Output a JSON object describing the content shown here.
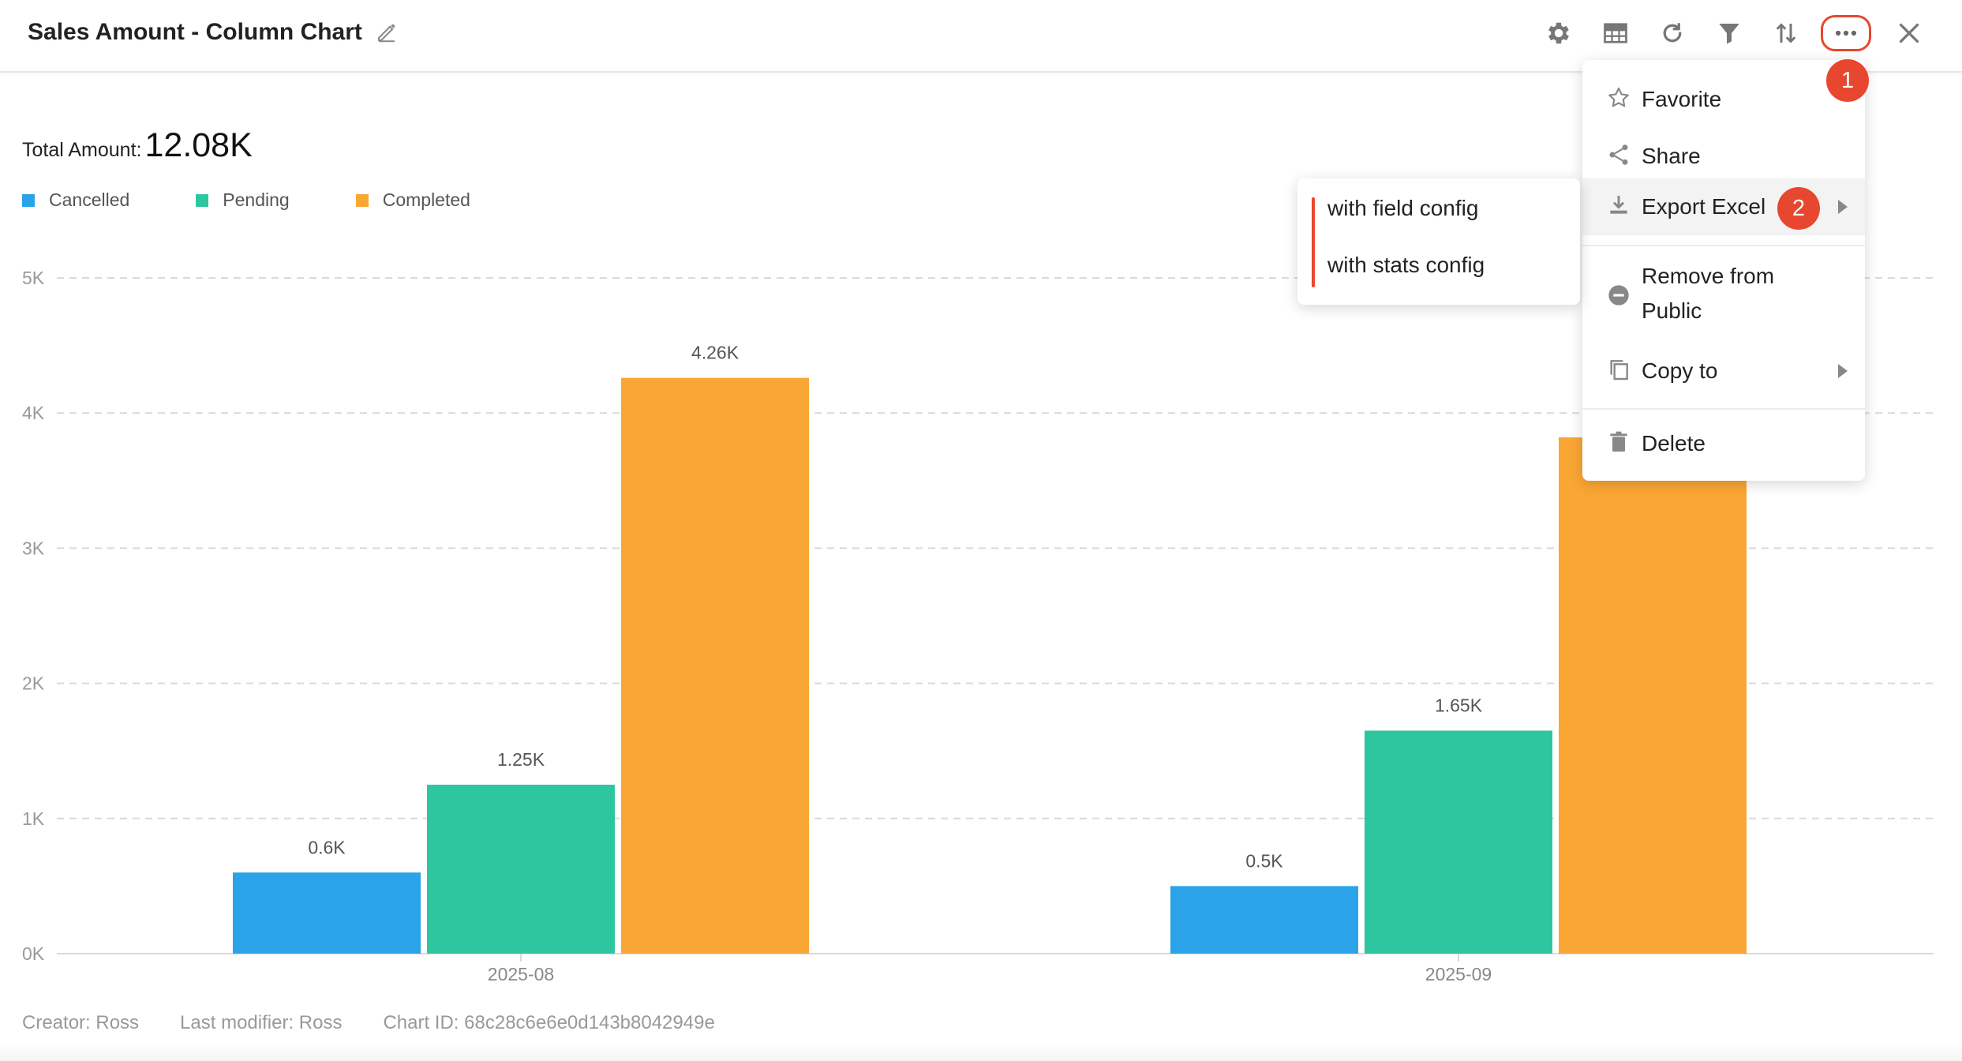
{
  "header": {
    "title": "Sales Amount - Column Chart"
  },
  "toolbar": {
    "icons": [
      "gear-icon",
      "table-icon",
      "refresh-icon",
      "filter-icon",
      "sort-icon",
      "more-icon",
      "close-icon"
    ]
  },
  "summary": {
    "total_label": "Total Amount:",
    "total_value": "12.08K"
  },
  "legend": [
    {
      "label": "Cancelled",
      "color": "#2AA3E8"
    },
    {
      "label": "Pending",
      "color": "#2EC69F"
    },
    {
      "label": "Completed",
      "color": "#FAA634"
    }
  ],
  "chart_data": {
    "type": "bar",
    "title": "",
    "categories": [
      "2025-08",
      "2025-09"
    ],
    "series": [
      {
        "name": "Cancelled",
        "values": [
          0.6,
          0.5
        ],
        "labels": [
          "0.6K",
          "0.5K"
        ],
        "color": "#2AA3E8"
      },
      {
        "name": "Pending",
        "values": [
          1.25,
          1.65
        ],
        "labels": [
          "1.25K",
          "1.65K"
        ],
        "color": "#2EC69F"
      },
      {
        "name": "Completed",
        "values": [
          4.26,
          3.82
        ],
        "labels": [
          "4.26K",
          ""
        ],
        "color": "#FAA634"
      }
    ],
    "y_ticks": [
      "0K",
      "1K",
      "2K",
      "3K",
      "4K",
      "5K"
    ],
    "ylim": [
      0,
      5
    ],
    "grid": true,
    "legend_position": "top-left"
  },
  "menu": {
    "items": [
      {
        "label": "Favorite",
        "icon": "star-icon"
      },
      {
        "label": "Share",
        "icon": "share-icon"
      },
      {
        "label": "Export Excel",
        "icon": "download-icon"
      },
      {
        "label": "Remove from Public",
        "label_line1": "Remove from",
        "label_line2": "Public",
        "icon": "minus-circle-icon"
      },
      {
        "label": "Copy to",
        "icon": "copy-icon"
      },
      {
        "label": "Delete",
        "icon": "trash-icon"
      }
    ]
  },
  "submenu": {
    "items": [
      "with field config",
      "with stats config"
    ]
  },
  "badges": [
    "1",
    "2"
  ],
  "footer": {
    "creator": "Creator: Ross",
    "last_modifier": "Last modifier: Ross",
    "chart_id": "Chart ID: 68c28c6e6e0d143b8042949e"
  }
}
